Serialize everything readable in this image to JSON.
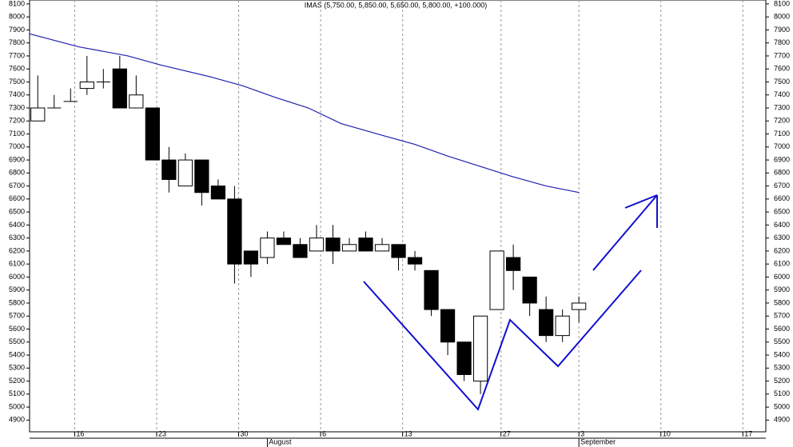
{
  "chart_data": {
    "type": "candlestick",
    "title": "IMAS (5,750.00, 5,850.00, 5,650.00, 5,800.00, +100.000)",
    "x": [
      0,
      1,
      2,
      3,
      4,
      5,
      6,
      7,
      8,
      9,
      10,
      11,
      12,
      13,
      14,
      15,
      16,
      17,
      18,
      19,
      20,
      21,
      22,
      23,
      24,
      25,
      26,
      27,
      28,
      29,
      30,
      31,
      32,
      33
    ],
    "open": [
      7200,
      7300,
      7350,
      7450,
      7500,
      7600,
      7300,
      7300,
      6900,
      6700,
      6900,
      6700,
      6600,
      6200,
      6150,
      6300,
      6250,
      6200,
      6300,
      6200,
      6300,
      6200,
      6250,
      6150,
      6050,
      5750,
      5500,
      5200,
      5750,
      6150,
      6000,
      5750,
      5550,
      5750
    ],
    "high": [
      7550,
      7400,
      7450,
      7700,
      7600,
      7700,
      7550,
      7300,
      7000,
      6950,
      6900,
      6750,
      6700,
      6200,
      6350,
      6350,
      6300,
      6400,
      6400,
      6300,
      6350,
      6300,
      6250,
      6200,
      6050,
      5750,
      5500,
      5700,
      6200,
      6250,
      6000,
      5850,
      5750,
      5850
    ],
    "low": [
      7200,
      7300,
      7350,
      7400,
      7450,
      7300,
      7300,
      6900,
      6650,
      6700,
      6550,
      6600,
      5950,
      6000,
      6100,
      6250,
      6150,
      6200,
      6100,
      6200,
      6200,
      6200,
      6050,
      6050,
      5700,
      5400,
      5200,
      5100,
      5750,
      5900,
      5700,
      5500,
      5500,
      5650
    ],
    "close": [
      7300,
      7300,
      7350,
      7500,
      7500,
      7300,
      7400,
      6900,
      6750,
      6900,
      6650,
      6600,
      6100,
      6100,
      6300,
      6250,
      6150,
      6300,
      6200,
      6250,
      6200,
      6250,
      6150,
      6100,
      5750,
      5500,
      5250,
      5700,
      6200,
      6050,
      5800,
      5550,
      5700,
      5800
    ],
    "up_color": "#ffffff",
    "down_color": "#000000",
    "ma": {
      "color": "#2020b0",
      "x": [
        -0.5,
        2.5,
        5.5,
        7.5,
        10.5,
        12.5,
        14.5,
        16.5,
        18.5,
        21,
        23,
        25,
        27,
        29,
        31,
        33
      ],
      "values": [
        7870,
        7770,
        7700,
        7630,
        7540,
        7470,
        7380,
        7300,
        7180,
        7090,
        7020,
        6930,
        6850,
        6770,
        6700,
        6650
      ]
    },
    "xlim": [
      -0.5,
      44.4
    ],
    "xticks": [
      {
        "value": 2.25,
        "label": "16"
      },
      {
        "value": 7.25,
        "label": "23"
      },
      {
        "value": 12.25,
        "label": "30"
      },
      {
        "value": 17.25,
        "label": "6"
      },
      {
        "value": 22.25,
        "label": "13"
      },
      {
        "value": 28.25,
        "label": "27"
      },
      {
        "value": 33,
        "label": "3"
      },
      {
        "value": 38,
        "label": "10"
      },
      {
        "value": 43,
        "label": "17"
      }
    ],
    "month_ticks": [
      {
        "value": 14,
        "label": "August"
      },
      {
        "value": 33,
        "label": "September"
      }
    ],
    "ylim": [
      4810,
      8130
    ],
    "yticks": [
      4900,
      5000,
      5100,
      5200,
      5300,
      5400,
      5500,
      5600,
      5700,
      5800,
      5900,
      6000,
      6100,
      6200,
      6300,
      6400,
      6500,
      6600,
      6700,
      6800,
      6900,
      7000,
      7100,
      7200,
      7300,
      7400,
      7500,
      7600,
      7700,
      7800,
      7900,
      8000,
      8100
    ],
    "grid": "x"
  }
}
